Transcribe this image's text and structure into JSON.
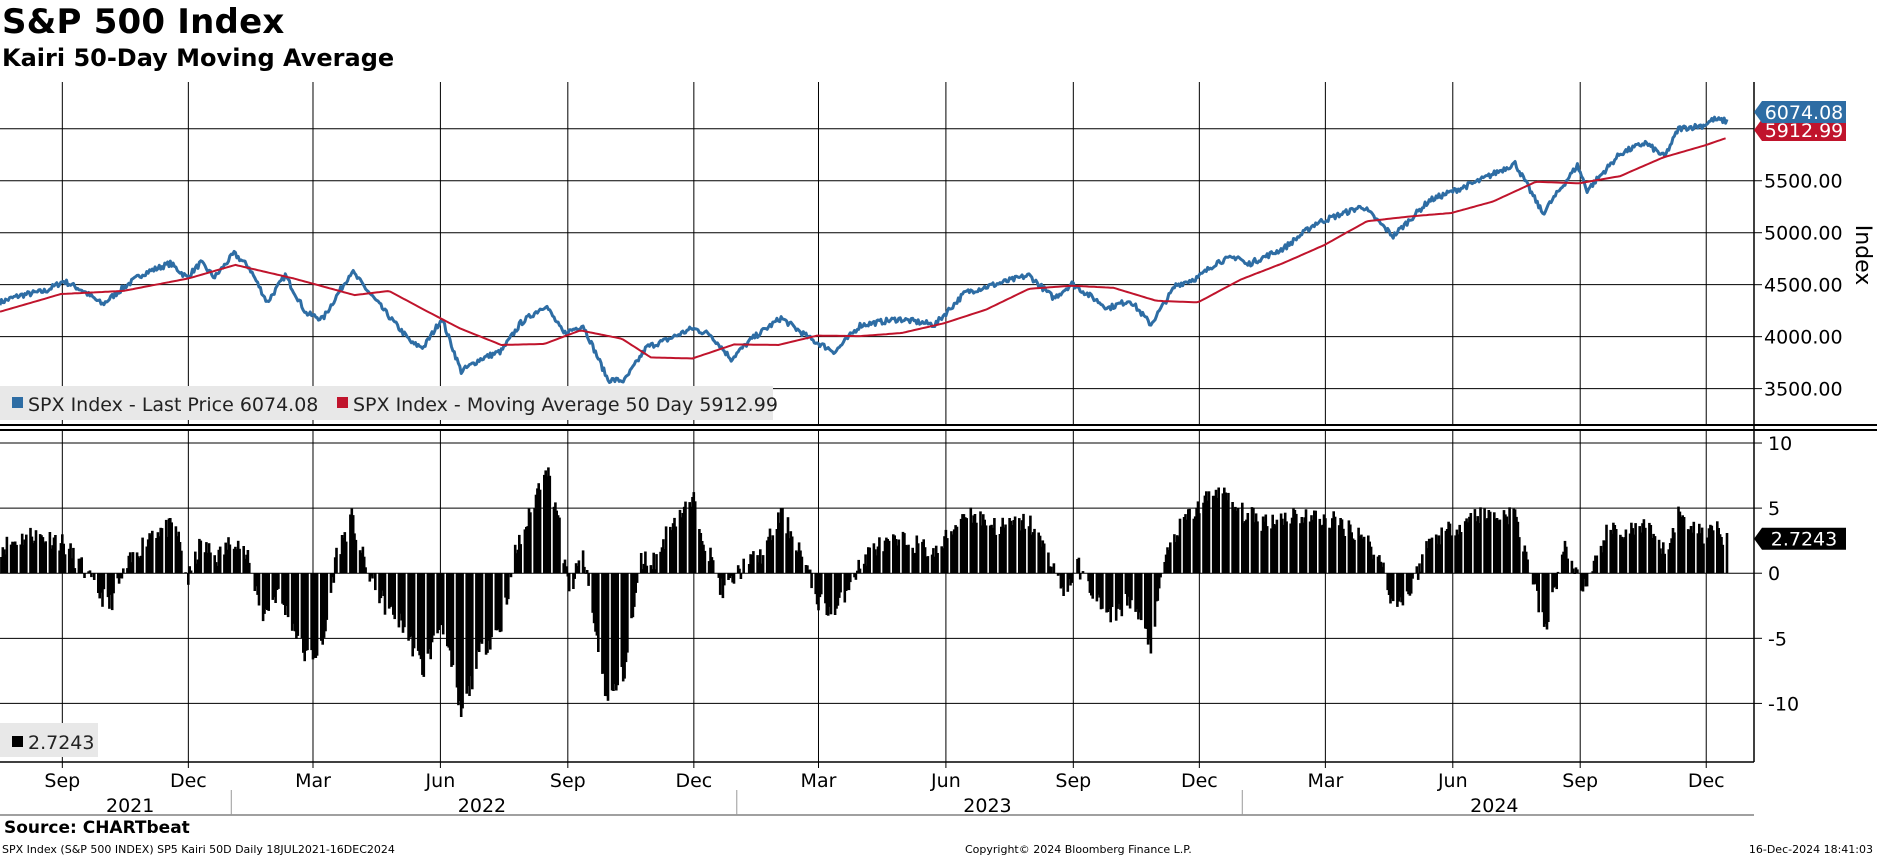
{
  "header": {
    "title": "S&P 500 Index",
    "subtitle": "Kairi 50-Day Moving Average"
  },
  "footer": {
    "source": "Source: CHARTbeat",
    "left": "SPX Index (S&P 500 INDEX) SP5 Kairi 50D  Daily 18JUL2021-16DEC2024",
    "middle": "Copyright© 2024 Bloomberg Finance L.P.",
    "right": "16-Dec-2024 18:41:03"
  },
  "colors": {
    "price": "#2e6da4",
    "ma": "#c0142c",
    "kairi": "#000000"
  },
  "chart_data": [
    {
      "type": "line",
      "title": "S&P 500 Index",
      "ylabel": "Index",
      "ylim": [
        3150,
        6450
      ],
      "yticks": [
        3500,
        4000,
        4500,
        5000,
        5500
      ],
      "ytick_labels": [
        "3500.00",
        "4000.00",
        "4500.00",
        "5000.00",
        "5500.00"
      ],
      "xlim": [
        "2021-07-18",
        "2024-12-16"
      ],
      "x_tick_labels": [
        "Sep",
        "Dec",
        "Mar",
        "Jun",
        "Sep",
        "Dec",
        "Mar",
        "Jun",
        "Sep",
        "Dec",
        "Mar",
        "Jun",
        "Sep",
        "Dec"
      ],
      "x_tick_dates": [
        "2021-09-01",
        "2021-12-01",
        "2022-03-01",
        "2022-06-01",
        "2022-09-01",
        "2022-12-01",
        "2023-03-01",
        "2023-06-01",
        "2023-09-01",
        "2023-12-01",
        "2024-03-01",
        "2024-06-01",
        "2024-09-01",
        "2024-12-01"
      ],
      "year_labels": [
        "2021",
        "2022",
        "2023",
        "2024"
      ],
      "year_label_dates": [
        "2021-10-20",
        "2022-07-01",
        "2023-07-01",
        "2024-07-01"
      ],
      "year_dividers": [
        "2022-01-01",
        "2023-01-01",
        "2024-01-01"
      ],
      "legend": [
        {
          "label": "SPX Index - Last Price 6074.08"
        },
        {
          "label": "SPX Index - Moving Average 50 Day 5912.99"
        }
      ],
      "last_value_tags": [
        {
          "label": "6074.08",
          "value": 6074.08
        },
        {
          "label": "5912.99",
          "value": 5912.99
        }
      ],
      "series": [
        {
          "name": "SPX Index - Last Price",
          "points": [
            [
              "2021-07-18",
              4330
            ],
            [
              "2021-08-01",
              4395
            ],
            [
              "2021-08-20",
              4440
            ],
            [
              "2021-09-02",
              4535
            ],
            [
              "2021-09-15",
              4450
            ],
            [
              "2021-09-30",
              4310
            ],
            [
              "2021-10-15",
              4470
            ],
            [
              "2021-10-29",
              4605
            ],
            [
              "2021-11-18",
              4705
            ],
            [
              "2021-11-30",
              4570
            ],
            [
              "2021-12-10",
              4710
            ],
            [
              "2021-12-20",
              4570
            ],
            [
              "2022-01-03",
              4800
            ],
            [
              "2022-01-14",
              4665
            ],
            [
              "2022-01-27",
              4330
            ],
            [
              "2022-02-09",
              4590
            ],
            [
              "2022-02-24",
              4225
            ],
            [
              "2022-03-08",
              4170
            ],
            [
              "2022-03-29",
              4630
            ],
            [
              "2022-04-12",
              4400
            ],
            [
              "2022-04-29",
              4130
            ],
            [
              "2022-05-12",
              3930
            ],
            [
              "2022-05-20",
              3900
            ],
            [
              "2022-06-02",
              4175
            ],
            [
              "2022-06-16",
              3666
            ],
            [
              "2022-06-30",
              3785
            ],
            [
              "2022-07-15",
              3860
            ],
            [
              "2022-07-29",
              4130
            ],
            [
              "2022-08-16",
              4305
            ],
            [
              "2022-08-29",
              4030
            ],
            [
              "2022-09-12",
              4110
            ],
            [
              "2022-09-30",
              3585
            ],
            [
              "2022-10-12",
              3577
            ],
            [
              "2022-10-28",
              3900
            ],
            [
              "2022-11-10",
              3960
            ],
            [
              "2022-11-30",
              4080
            ],
            [
              "2022-12-13",
              4020
            ],
            [
              "2022-12-28",
              3785
            ],
            [
              "2023-01-12",
              3980
            ],
            [
              "2023-02-02",
              4180
            ],
            [
              "2023-02-24",
              3970
            ],
            [
              "2023-03-13",
              3855
            ],
            [
              "2023-03-31",
              4110
            ],
            [
              "2023-04-28",
              4170
            ],
            [
              "2023-05-24",
              4115
            ],
            [
              "2023-06-15",
              4425
            ],
            [
              "2023-07-31",
              4590
            ],
            [
              "2023-08-18",
              4370
            ],
            [
              "2023-08-31",
              4510
            ],
            [
              "2023-09-26",
              4275
            ],
            [
              "2023-10-12",
              4350
            ],
            [
              "2023-10-27",
              4117
            ],
            [
              "2023-11-14",
              4495
            ],
            [
              "2023-11-30",
              4568
            ],
            [
              "2023-12-14",
              4720
            ],
            [
              "2023-12-29",
              4770
            ],
            [
              "2024-01-04",
              4690
            ],
            [
              "2024-01-31",
              4850
            ],
            [
              "2024-02-23",
              5090
            ],
            [
              "2024-03-28",
              5254
            ],
            [
              "2024-04-19",
              4967
            ],
            [
              "2024-05-15",
              5310
            ],
            [
              "2024-06-18",
              5487
            ],
            [
              "2024-07-16",
              5667
            ],
            [
              "2024-08-05",
              5186
            ],
            [
              "2024-08-30",
              5648
            ],
            [
              "2024-09-06",
              5408
            ],
            [
              "2024-09-30",
              5762
            ],
            [
              "2024-10-18",
              5865
            ],
            [
              "2024-11-01",
              5729
            ],
            [
              "2024-11-11",
              6001
            ],
            [
              "2024-11-29",
              6032
            ],
            [
              "2024-12-06",
              6090
            ],
            [
              "2024-12-16",
              6074.08
            ]
          ]
        },
        {
          "name": "SPX Index - Moving Average 50 Day",
          "points": [
            [
              "2021-07-18",
              4240
            ],
            [
              "2021-08-31",
              4410
            ],
            [
              "2021-10-15",
              4440
            ],
            [
              "2021-12-01",
              4560
            ],
            [
              "2022-01-04",
              4690
            ],
            [
              "2022-02-15",
              4560
            ],
            [
              "2022-03-31",
              4400
            ],
            [
              "2022-04-25",
              4440
            ],
            [
              "2022-05-20",
              4260
            ],
            [
              "2022-06-15",
              4080
            ],
            [
              "2022-07-15",
              3920
            ],
            [
              "2022-08-15",
              3930
            ],
            [
              "2022-09-10",
              4060
            ],
            [
              "2022-10-10",
              3980
            ],
            [
              "2022-10-31",
              3800
            ],
            [
              "2022-11-30",
              3790
            ],
            [
              "2022-12-30",
              3925
            ],
            [
              "2023-01-31",
              3920
            ],
            [
              "2023-02-28",
              4010
            ],
            [
              "2023-03-31",
              4005
            ],
            [
              "2023-04-30",
              4035
            ],
            [
              "2023-05-31",
              4130
            ],
            [
              "2023-06-30",
              4260
            ],
            [
              "2023-07-31",
              4460
            ],
            [
              "2023-08-31",
              4490
            ],
            [
              "2023-09-30",
              4470
            ],
            [
              "2023-10-31",
              4345
            ],
            [
              "2023-11-30",
              4330
            ],
            [
              "2023-12-31",
              4550
            ],
            [
              "2024-01-31",
              4710
            ],
            [
              "2024-02-29",
              4880
            ],
            [
              "2024-03-31",
              5110
            ],
            [
              "2024-04-30",
              5155
            ],
            [
              "2024-05-31",
              5190
            ],
            [
              "2024-06-30",
              5300
            ],
            [
              "2024-07-31",
              5490
            ],
            [
              "2024-08-31",
              5475
            ],
            [
              "2024-09-30",
              5545
            ],
            [
              "2024-10-31",
              5725
            ],
            [
              "2024-11-30",
              5840
            ],
            [
              "2024-12-16",
              5912.99
            ]
          ]
        }
      ]
    },
    {
      "type": "bar",
      "title": "Kairi 50-Day Moving Average",
      "ylim": [
        -14.5,
        11
      ],
      "yticks": [
        -10,
        -5,
        0,
        5,
        10
      ],
      "ytick_labels": [
        "-10",
        "-5",
        "0",
        "5",
        "10"
      ],
      "legend": [
        {
          "label": "2.7243"
        }
      ],
      "last_value_tags": [
        {
          "label": "2.7243",
          "value": 2.7243
        }
      ],
      "series": [
        {
          "name": "SPX Kairi 50D",
          "points": [
            [
              "2021-07-18",
              2.0
            ],
            [
              "2021-08-10",
              3.0
            ],
            [
              "2021-08-31",
              2.5
            ],
            [
              "2021-09-15",
              0.5
            ],
            [
              "2021-09-24",
              -1.0
            ],
            [
              "2021-10-05",
              -2.5
            ],
            [
              "2021-10-18",
              0.5
            ],
            [
              "2021-11-05",
              3.3
            ],
            [
              "2021-11-22",
              3.5
            ],
            [
              "2021-12-01",
              -0.5
            ],
            [
              "2021-12-10",
              2.2
            ],
            [
              "2021-12-22",
              1.2
            ],
            [
              "2022-01-04",
              2.8
            ],
            [
              "2022-01-14",
              0.8
            ],
            [
              "2022-01-24",
              -3.3
            ],
            [
              "2022-02-03",
              -1.5
            ],
            [
              "2022-02-15",
              -4.0
            ],
            [
              "2022-02-24",
              -6.5
            ],
            [
              "2022-03-08",
              -5.8
            ],
            [
              "2022-03-18",
              1.5
            ],
            [
              "2022-03-29",
              4.2
            ],
            [
              "2022-04-08",
              0.5
            ],
            [
              "2022-04-22",
              -2.5
            ],
            [
              "2022-05-05",
              -4.0
            ],
            [
              "2022-05-20",
              -7.5
            ],
            [
              "2022-06-02",
              -3.5
            ],
            [
              "2022-06-16",
              -11.0
            ],
            [
              "2022-06-30",
              -6.0
            ],
            [
              "2022-07-15",
              -4.0
            ],
            [
              "2022-07-25",
              1.5
            ],
            [
              "2022-08-05",
              4.5
            ],
            [
              "2022-08-16",
              8.5
            ],
            [
              "2022-08-24",
              5.0
            ],
            [
              "2022-09-02",
              -1.5
            ],
            [
              "2022-09-12",
              1.5
            ],
            [
              "2022-09-21",
              -4.5
            ],
            [
              "2022-09-30",
              -10.0
            ],
            [
              "2022-10-12",
              -7.5
            ],
            [
              "2022-10-24",
              1.0
            ],
            [
              "2022-11-04",
              1.0
            ],
            [
              "2022-11-15",
              4.0
            ],
            [
              "2022-12-01",
              5.5
            ],
            [
              "2022-12-09",
              2.5
            ],
            [
              "2022-12-22",
              -1.5
            ],
            [
              "2023-01-06",
              0.5
            ],
            [
              "2023-01-20",
              1.5
            ],
            [
              "2023-02-02",
              4.5
            ],
            [
              "2023-02-15",
              2.0
            ],
            [
              "2023-02-28",
              -2.0
            ],
            [
              "2023-03-13",
              -3.2
            ],
            [
              "2023-03-24",
              -0.5
            ],
            [
              "2023-04-10",
              2.0
            ],
            [
              "2023-05-05",
              2.5
            ],
            [
              "2023-05-25",
              1.5
            ],
            [
              "2023-06-15",
              4.8
            ],
            [
              "2023-07-10",
              3.5
            ],
            [
              "2023-07-31",
              4.0
            ],
            [
              "2023-08-18",
              0.5
            ],
            [
              "2023-08-25",
              -1.5
            ],
            [
              "2023-09-05",
              0.5
            ],
            [
              "2023-09-26",
              -3.5
            ],
            [
              "2023-10-12",
              -2.0
            ],
            [
              "2023-10-27",
              -5.5
            ],
            [
              "2023-11-07",
              1.5
            ],
            [
              "2023-11-20",
              4.0
            ],
            [
              "2023-12-14",
              6.5
            ],
            [
              "2023-12-29",
              4.8
            ],
            [
              "2024-01-15",
              4.0
            ],
            [
              "2024-02-08",
              4.5
            ],
            [
              "2024-03-08",
              4.0
            ],
            [
              "2024-03-28",
              3.0
            ],
            [
              "2024-04-12",
              0.5
            ],
            [
              "2024-04-19",
              -2.5
            ],
            [
              "2024-05-01",
              -1.5
            ],
            [
              "2024-05-15",
              2.5
            ],
            [
              "2024-06-18",
              4.5
            ],
            [
              "2024-07-16",
              4.5
            ],
            [
              "2024-07-25",
              1.0
            ],
            [
              "2024-08-07",
              -4.5
            ],
            [
              "2024-08-20",
              2.0
            ],
            [
              "2024-09-06",
              -1.5
            ],
            [
              "2024-09-19",
              3.0
            ],
            [
              "2024-10-18",
              3.5
            ],
            [
              "2024-11-01",
              1.5
            ],
            [
              "2024-11-11",
              4.5
            ],
            [
              "2024-11-29",
              3.0
            ],
            [
              "2024-12-06",
              3.5
            ],
            [
              "2024-12-16",
              2.7243
            ]
          ]
        }
      ]
    }
  ]
}
